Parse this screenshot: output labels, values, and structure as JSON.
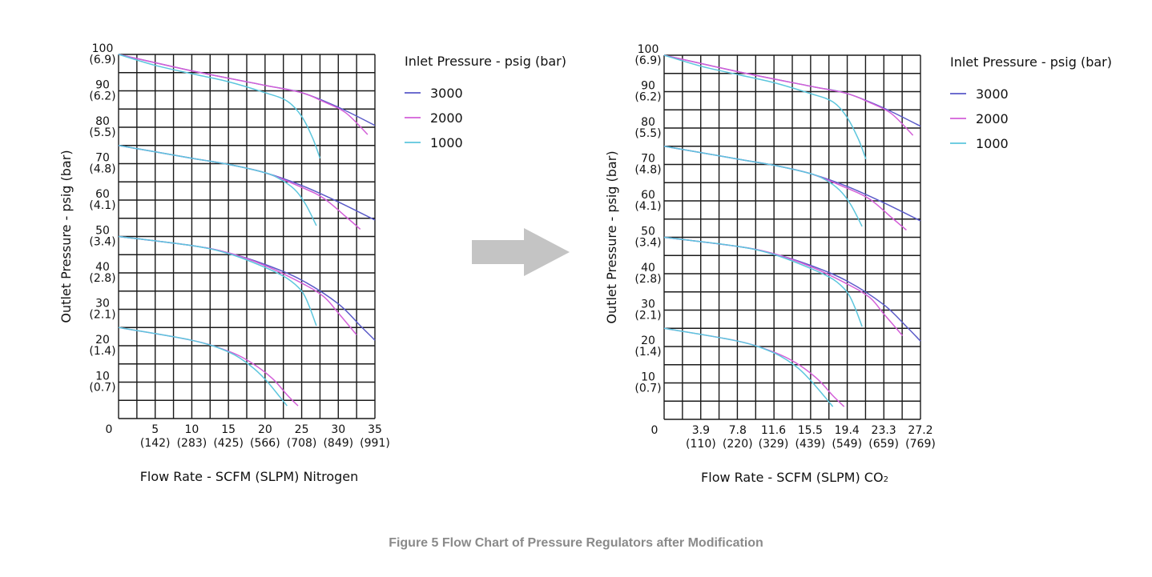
{
  "caption": "Figure 5 Flow Chart of Pressure Regulators after Modification",
  "arrow_color": "#c4c4c4",
  "chart_data": [
    {
      "type": "line",
      "ylabel": "Outlet Pressure - psig (bar)",
      "xlabel": "Flow Rate - SCFM (SLPM) Nitrogen",
      "xlabel_sub": "",
      "legend_title": "Inlet Pressure - psig (bar)",
      "legend_position": "right",
      "grid": true,
      "xlim": [
        0,
        35
      ],
      "ylim": [
        0,
        100
      ],
      "x_ticks": [
        {
          "value": 0,
          "label": "0",
          "sub": ""
        },
        {
          "value": 5,
          "label": "5",
          "sub": "(142)"
        },
        {
          "value": 10,
          "label": "10",
          "sub": "(283)"
        },
        {
          "value": 15,
          "label": "15",
          "sub": "(425)"
        },
        {
          "value": 20,
          "label": "20",
          "sub": "(566)"
        },
        {
          "value": 25,
          "label": "25",
          "sub": "(708)"
        },
        {
          "value": 30,
          "label": "30",
          "sub": "(849)"
        },
        {
          "value": 35,
          "label": "35",
          "sub": "(991)"
        }
      ],
      "y_ticks": [
        {
          "value": 10,
          "label": "10",
          "sub": "(0.7)"
        },
        {
          "value": 20,
          "label": "20",
          "sub": "(1.4)"
        },
        {
          "value": 30,
          "label": "30",
          "sub": "(2.1)"
        },
        {
          "value": 40,
          "label": "40",
          "sub": "(2.8)"
        },
        {
          "value": 50,
          "label": "50",
          "sub": "(3.4)"
        },
        {
          "value": 60,
          "label": "60",
          "sub": "(4.1)"
        },
        {
          "value": 70,
          "label": "70",
          "sub": "(4.8)"
        },
        {
          "value": 80,
          "label": "80",
          "sub": "(5.5)"
        },
        {
          "value": 90,
          "label": "90",
          "sub": "(6.2)"
        },
        {
          "value": 100,
          "label": "100",
          "sub": "(6.9)"
        }
      ],
      "series": [
        {
          "name": "3000",
          "color": "#5a5ac8",
          "curves": [
            [
              [
                0,
                100
              ],
              [
                10,
                95.5
              ],
              [
                20,
                91.5
              ],
              [
                25,
                89.5
              ],
              [
                30,
                85.5
              ],
              [
                35,
                80.5
              ]
            ],
            [
              [
                0,
                75
              ],
              [
                10,
                71.5
              ],
              [
                15,
                69.8
              ],
              [
                20,
                67.5
              ],
              [
                25,
                64
              ],
              [
                30,
                59.5
              ],
              [
                35,
                54.5
              ]
            ],
            [
              [
                0,
                50
              ],
              [
                10,
                47.5
              ],
              [
                15,
                45.5
              ],
              [
                20,
                42.3
              ],
              [
                25,
                38
              ],
              [
                30,
                31.5
              ],
              [
                33,
                25.5
              ],
              [
                35,
                21.5
              ]
            ]
          ]
        },
        {
          "name": "2000",
          "color": "#d35fd8",
          "curves": [
            [
              [
                0,
                100
              ],
              [
                10,
                95.5
              ],
              [
                20,
                91.5
              ],
              [
                25,
                89.5
              ],
              [
                28,
                87
              ],
              [
                31,
                84
              ],
              [
                34,
                78
              ]
            ],
            [
              [
                0,
                75
              ],
              [
                10,
                71.5
              ],
              [
                15,
                69.8
              ],
              [
                20,
                67.5
              ],
              [
                25,
                63.5
              ],
              [
                28,
                60.5
              ],
              [
                31,
                55.5
              ],
              [
                33,
                52
              ]
            ],
            [
              [
                0,
                50
              ],
              [
                10,
                47.5
              ],
              [
                15,
                45.5
              ],
              [
                20,
                42
              ],
              [
                25,
                37.2
              ],
              [
                28,
                33.5
              ],
              [
                30,
                29
              ],
              [
                32.5,
                23
              ]
            ],
            [
              [
                0,
                25
              ],
              [
                10,
                21.5
              ],
              [
                15,
                18.5
              ],
              [
                18,
                15.5
              ],
              [
                21,
                11
              ],
              [
                23,
                6.5
              ],
              [
                24.5,
                3.5
              ]
            ]
          ]
        },
        {
          "name": "1000",
          "color": "#5cc6dd",
          "curves": [
            [
              [
                0,
                100
              ],
              [
                5,
                97
              ],
              [
                10,
                94.7
              ],
              [
                15,
                92.5
              ],
              [
                20,
                89.5
              ],
              [
                23,
                87.2
              ],
              [
                25,
                83
              ],
              [
                26.5,
                77
              ],
              [
                27.5,
                71.5
              ]
            ],
            [
              [
                0,
                75
              ],
              [
                10,
                71.5
              ],
              [
                15,
                69.8
              ],
              [
                20,
                67.5
              ],
              [
                22,
                65.8
              ],
              [
                24,
                63
              ],
              [
                25.5,
                59
              ],
              [
                27,
                53
              ]
            ],
            [
              [
                0,
                50
              ],
              [
                10,
                47.5
              ],
              [
                15,
                45.3
              ],
              [
                20,
                41.5
              ],
              [
                23,
                38.5
              ],
              [
                25,
                35
              ],
              [
                26,
                31
              ],
              [
                27,
                25.5
              ]
            ],
            [
              [
                0,
                25
              ],
              [
                10,
                21.5
              ],
              [
                15,
                18.3
              ],
              [
                18,
                14.5
              ],
              [
                20,
                10.8
              ],
              [
                22,
                6
              ],
              [
                23,
                3.5
              ]
            ]
          ]
        }
      ]
    },
    {
      "type": "line",
      "ylabel": "Outlet Pressure - psig (bar)",
      "xlabel": "Flow Rate - SCFM (SLPM) CO",
      "xlabel_sub": "2",
      "legend_title": "Inlet Pressure - psig (bar)",
      "legend_position": "right",
      "grid": true,
      "xlim": [
        0,
        27.2
      ],
      "ylim": [
        0,
        100
      ],
      "x_ticks": [
        {
          "value": 0,
          "label": "0",
          "sub": ""
        },
        {
          "value": 3.9,
          "label": "3.9",
          "sub": "(110)"
        },
        {
          "value": 7.8,
          "label": "7.8",
          "sub": "(220)"
        },
        {
          "value": 11.6,
          "label": "11.6",
          "sub": "(329)"
        },
        {
          "value": 15.5,
          "label": "15.5",
          "sub": "(439)"
        },
        {
          "value": 19.4,
          "label": "19.4",
          "sub": "(549)"
        },
        {
          "value": 23.3,
          "label": "23.3",
          "sub": "(659)"
        },
        {
          "value": 27.2,
          "label": "27.2",
          "sub": "(769)"
        }
      ],
      "y_ticks": [
        {
          "value": 10,
          "label": "10",
          "sub": "(0.7)"
        },
        {
          "value": 20,
          "label": "20",
          "sub": "(1.4)"
        },
        {
          "value": 30,
          "label": "30",
          "sub": "(2.1)"
        },
        {
          "value": 40,
          "label": "40",
          "sub": "(2.8)"
        },
        {
          "value": 50,
          "label": "50",
          "sub": "(3.4)"
        },
        {
          "value": 60,
          "label": "60",
          "sub": "(4.1)"
        },
        {
          "value": 70,
          "label": "70",
          "sub": "(4.8)"
        },
        {
          "value": 80,
          "label": "80",
          "sub": "(5.5)"
        },
        {
          "value": 90,
          "label": "90",
          "sub": "(6.2)"
        },
        {
          "value": 100,
          "label": "100",
          "sub": "(6.9)"
        }
      ],
      "series": [
        {
          "name": "3000",
          "color": "#5a5ac8",
          "curves": [
            [
              [
                0,
                100
              ],
              [
                7.8,
                95.5
              ],
              [
                15.5,
                91.5
              ],
              [
                19.4,
                89.5
              ],
              [
                23.3,
                85.5
              ],
              [
                27.2,
                80.5
              ]
            ],
            [
              [
                0,
                75
              ],
              [
                7.8,
                71.5
              ],
              [
                11.6,
                69.8
              ],
              [
                15.5,
                67.5
              ],
              [
                19.4,
                64
              ],
              [
                23.3,
                59.5
              ],
              [
                27.2,
                54.5
              ]
            ],
            [
              [
                0,
                50
              ],
              [
                7.8,
                47.5
              ],
              [
                11.6,
                45.5
              ],
              [
                15.5,
                42.3
              ],
              [
                19.4,
                38
              ],
              [
                23.3,
                31.5
              ],
              [
                25.7,
                25.5
              ],
              [
                27.2,
                21.5
              ]
            ]
          ]
        },
        {
          "name": "2000",
          "color": "#d35fd8",
          "curves": [
            [
              [
                0,
                100
              ],
              [
                7.8,
                95.5
              ],
              [
                15.5,
                91.5
              ],
              [
                19.4,
                89.5
              ],
              [
                21.8,
                87
              ],
              [
                24.1,
                84
              ],
              [
                26.4,
                78
              ]
            ],
            [
              [
                0,
                75
              ],
              [
                7.8,
                71.5
              ],
              [
                11.6,
                69.8
              ],
              [
                15.5,
                67.5
              ],
              [
                19.4,
                63.5
              ],
              [
                21.8,
                60.5
              ],
              [
                24.1,
                55.5
              ],
              [
                25.7,
                52
              ]
            ],
            [
              [
                0,
                50
              ],
              [
                7.8,
                47.5
              ],
              [
                11.6,
                45.5
              ],
              [
                15.5,
                42
              ],
              [
                19.4,
                37.2
              ],
              [
                21.8,
                33.5
              ],
              [
                23.3,
                29
              ],
              [
                25.3,
                23
              ]
            ],
            [
              [
                0,
                25
              ],
              [
                7.8,
                21.5
              ],
              [
                11.6,
                18.5
              ],
              [
                14,
                15.5
              ],
              [
                16.3,
                11
              ],
              [
                17.9,
                6.5
              ],
              [
                19.1,
                3.5
              ]
            ]
          ]
        },
        {
          "name": "1000",
          "color": "#5cc6dd",
          "curves": [
            [
              [
                0,
                100
              ],
              [
                3.9,
                97
              ],
              [
                7.8,
                94.7
              ],
              [
                11.6,
                92.5
              ],
              [
                15.5,
                89.5
              ],
              [
                17.9,
                87.2
              ],
              [
                19.4,
                83
              ],
              [
                20.6,
                77
              ],
              [
                21.4,
                71.5
              ]
            ],
            [
              [
                0,
                75
              ],
              [
                7.8,
                71.5
              ],
              [
                11.6,
                69.8
              ],
              [
                15.5,
                67.5
              ],
              [
                17.1,
                65.8
              ],
              [
                18.6,
                63
              ],
              [
                19.8,
                59
              ],
              [
                21,
                53
              ]
            ],
            [
              [
                0,
                50
              ],
              [
                7.8,
                47.5
              ],
              [
                11.6,
                45.3
              ],
              [
                15.5,
                41.5
              ],
              [
                17.9,
                38.5
              ],
              [
                19.4,
                35
              ],
              [
                20.2,
                31
              ],
              [
                21,
                25.5
              ]
            ],
            [
              [
                0,
                25
              ],
              [
                7.8,
                21.5
              ],
              [
                11.6,
                18.3
              ],
              [
                14,
                14.5
              ],
              [
                15.5,
                10.8
              ],
              [
                17.1,
                6
              ],
              [
                17.9,
                3.5
              ]
            ]
          ]
        }
      ]
    }
  ]
}
